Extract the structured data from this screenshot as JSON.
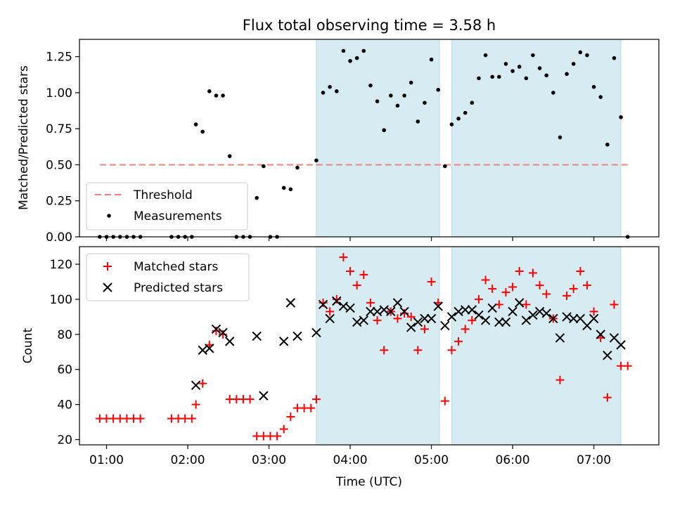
{
  "figure": {
    "title": "Flux total observing time = 3.58 h"
  },
  "chart_data": [
    {
      "type": "scatter",
      "title": "Flux total observing time = 3.58 h",
      "xlabel": "",
      "ylabel": "Matched/Predicted stars",
      "xlim": [
        "00:40",
        "07:48"
      ],
      "ylim": [
        0,
        1.37
      ],
      "yticks": [
        0.0,
        0.25,
        0.5,
        0.75,
        1.0,
        1.25
      ],
      "ytick_labels": [
        "0.00",
        "0.25",
        "0.50",
        "0.75",
        "1.00",
        "1.25"
      ],
      "grid": false,
      "legend_position": "lower-left",
      "shaded_spans": [
        {
          "start": "03:35",
          "end": "05:06",
          "color": "#add8e6"
        },
        {
          "start": "05:15",
          "end": "07:20",
          "color": "#add8e6"
        }
      ],
      "threshold": {
        "label": "Threshold",
        "value": 0.5,
        "x_start": "00:55",
        "x_end": "07:25",
        "color": "#f08080",
        "style": "dashed"
      },
      "series": [
        {
          "name": "Measurements",
          "color": "#000000",
          "marker": "dot",
          "points": [
            [
              "00:55",
              0
            ],
            [
              "01:00",
              0
            ],
            [
              "01:05",
              0
            ],
            [
              "01:10",
              0
            ],
            [
              "01:15",
              0
            ],
            [
              "01:20",
              0
            ],
            [
              "01:25",
              0
            ],
            [
              "01:48",
              0
            ],
            [
              "01:53",
              0
            ],
            [
              "01:58",
              0
            ],
            [
              "02:03",
              0
            ],
            [
              "02:06",
              0.78
            ],
            [
              "02:11",
              0.73
            ],
            [
              "02:16",
              1.01
            ],
            [
              "02:21",
              0.98
            ],
            [
              "02:26",
              0.98
            ],
            [
              "02:31",
              0.56
            ],
            [
              "02:36",
              0
            ],
            [
              "02:41",
              0
            ],
            [
              "02:46",
              0
            ],
            [
              "02:51",
              0.27
            ],
            [
              "02:56",
              0.49
            ],
            [
              "03:01",
              0
            ],
            [
              "03:06",
              0
            ],
            [
              "03:11",
              0.34
            ],
            [
              "03:16",
              0.33
            ],
            [
              "03:21",
              0.48
            ],
            [
              "03:35",
              0.53
            ],
            [
              "03:40",
              1.0
            ],
            [
              "03:45",
              1.04
            ],
            [
              "03:50",
              1.01
            ],
            [
              "03:55",
              1.29
            ],
            [
              "04:00",
              1.22
            ],
            [
              "04:05",
              1.24
            ],
            [
              "04:10",
              1.29
            ],
            [
              "04:15",
              1.05
            ],
            [
              "04:20",
              0.94
            ],
            [
              "04:25",
              0.74
            ],
            [
              "04:30",
              0.98
            ],
            [
              "04:35",
              0.91
            ],
            [
              "04:40",
              0.98
            ],
            [
              "04:45",
              1.07
            ],
            [
              "04:50",
              0.8
            ],
            [
              "04:55",
              0.93
            ],
            [
              "05:00",
              1.23
            ],
            [
              "05:05",
              1.02
            ],
            [
              "05:10",
              0.49
            ],
            [
              "05:15",
              0.78
            ],
            [
              "05:20",
              0.82
            ],
            [
              "05:25",
              0.86
            ],
            [
              "05:30",
              0.93
            ],
            [
              "05:35",
              1.1
            ],
            [
              "05:40",
              1.26
            ],
            [
              "05:45",
              1.11
            ],
            [
              "05:50",
              1.11
            ],
            [
              "05:55",
              1.2
            ],
            [
              "06:00",
              1.15
            ],
            [
              "06:05",
              1.18
            ],
            [
              "06:10",
              1.1
            ],
            [
              "06:15",
              1.26
            ],
            [
              "06:20",
              1.17
            ],
            [
              "06:25",
              1.12
            ],
            [
              "06:30",
              1.0
            ],
            [
              "06:35",
              0.69
            ],
            [
              "06:40",
              1.13
            ],
            [
              "06:45",
              1.2
            ],
            [
              "06:50",
              1.28
            ],
            [
              "06:55",
              1.26
            ],
            [
              "07:00",
              1.04
            ],
            [
              "07:05",
              0.97
            ],
            [
              "07:10",
              0.64
            ],
            [
              "07:15",
              1.24
            ],
            [
              "07:20",
              0.83
            ],
            [
              "07:25",
              0
            ]
          ]
        }
      ],
      "legend": [
        "Threshold",
        "Measurements"
      ]
    },
    {
      "type": "scatter",
      "title": "",
      "xlabel": "Time (UTC)",
      "ylabel": "Count",
      "xlim": [
        "00:40",
        "07:48"
      ],
      "ylim": [
        17,
        130
      ],
      "xticks": [
        "01:00",
        "02:00",
        "03:00",
        "04:00",
        "05:00",
        "06:00",
        "07:00"
      ],
      "yticks": [
        20,
        40,
        60,
        80,
        100,
        120
      ],
      "grid": false,
      "legend_position": "upper-left",
      "shaded_spans": [
        {
          "start": "03:35",
          "end": "05:06",
          "color": "#add8e6"
        },
        {
          "start": "05:15",
          "end": "07:20",
          "color": "#add8e6"
        }
      ],
      "series": [
        {
          "name": "Matched stars",
          "color": "#ff0000",
          "marker": "plus",
          "points": [
            [
              "00:55",
              32
            ],
            [
              "01:00",
              32
            ],
            [
              "01:05",
              32
            ],
            [
              "01:10",
              32
            ],
            [
              "01:15",
              32
            ],
            [
              "01:20",
              32
            ],
            [
              "01:25",
              32
            ],
            [
              "01:48",
              32
            ],
            [
              "01:53",
              32
            ],
            [
              "01:58",
              32
            ],
            [
              "02:03",
              32
            ],
            [
              "02:06",
              40
            ],
            [
              "02:11",
              52
            ],
            [
              "02:16",
              74
            ],
            [
              "02:21",
              82
            ],
            [
              "02:26",
              80
            ],
            [
              "02:31",
              43
            ],
            [
              "02:36",
              43
            ],
            [
              "02:41",
              43
            ],
            [
              "02:46",
              43
            ],
            [
              "02:51",
              22
            ],
            [
              "02:56",
              22
            ],
            [
              "03:01",
              22
            ],
            [
              "03:06",
              22
            ],
            [
              "03:11",
              26
            ],
            [
              "03:16",
              33
            ],
            [
              "03:21",
              38
            ],
            [
              "03:26",
              38
            ],
            [
              "03:31",
              38
            ],
            [
              "03:35",
              43
            ],
            [
              "03:40",
              98
            ],
            [
              "03:45",
              93
            ],
            [
              "03:50",
              100
            ],
            [
              "03:55",
              124
            ],
            [
              "04:00",
              116
            ],
            [
              "04:05",
              108
            ],
            [
              "04:10",
              114
            ],
            [
              "04:15",
              98
            ],
            [
              "04:20",
              88
            ],
            [
              "04:25",
              71
            ],
            [
              "04:30",
              93
            ],
            [
              "04:35",
              89
            ],
            [
              "04:40",
              92
            ],
            [
              "04:45",
              90
            ],
            [
              "04:50",
              71
            ],
            [
              "04:55",
              83
            ],
            [
              "05:00",
              110
            ],
            [
              "05:05",
              98
            ],
            [
              "05:10",
              42
            ],
            [
              "05:15",
              71
            ],
            [
              "05:20",
              76
            ],
            [
              "05:25",
              83
            ],
            [
              "05:30",
              88
            ],
            [
              "05:35",
              100
            ],
            [
              "05:40",
              111
            ],
            [
              "05:45",
              106
            ],
            [
              "05:50",
              97
            ],
            [
              "05:55",
              104
            ],
            [
              "06:00",
              107
            ],
            [
              "06:05",
              116
            ],
            [
              "06:10",
              97
            ],
            [
              "06:15",
              115
            ],
            [
              "06:20",
              108
            ],
            [
              "06:25",
              103
            ],
            [
              "06:30",
              89
            ],
            [
              "06:35",
              54
            ],
            [
              "06:40",
              102
            ],
            [
              "06:45",
              106
            ],
            [
              "06:50",
              116
            ],
            [
              "06:55",
              108
            ],
            [
              "07:00",
              93
            ],
            [
              "07:05",
              78
            ],
            [
              "07:10",
              44
            ],
            [
              "07:15",
              97
            ],
            [
              "07:20",
              62
            ],
            [
              "07:25",
              62
            ]
          ]
        },
        {
          "name": "Predicted stars",
          "color": "#000000",
          "marker": "x",
          "points": [
            [
              "02:06",
              51
            ],
            [
              "02:11",
              71
            ],
            [
              "02:16",
              72
            ],
            [
              "02:21",
              83
            ],
            [
              "02:26",
              81
            ],
            [
              "02:31",
              76
            ],
            [
              "02:51",
              79
            ],
            [
              "02:56",
              45
            ],
            [
              "03:11",
              76
            ],
            [
              "03:16",
              98
            ],
            [
              "03:21",
              79
            ],
            [
              "03:35",
              81
            ],
            [
              "03:40",
              97
            ],
            [
              "03:45",
              89
            ],
            [
              "03:50",
              99
            ],
            [
              "03:55",
              96
            ],
            [
              "04:00",
              95
            ],
            [
              "04:05",
              87
            ],
            [
              "04:10",
              88
            ],
            [
              "04:15",
              93
            ],
            [
              "04:20",
              93
            ],
            [
              "04:25",
              94
            ],
            [
              "04:30",
              93
            ],
            [
              "04:35",
              98
            ],
            [
              "04:40",
              93
            ],
            [
              "04:45",
              84
            ],
            [
              "04:50",
              87
            ],
            [
              "04:55",
              89
            ],
            [
              "05:00",
              89
            ],
            [
              "05:05",
              96
            ],
            [
              "05:10",
              85
            ],
            [
              "05:15",
              90
            ],
            [
              "05:20",
              93
            ],
            [
              "05:25",
              94
            ],
            [
              "05:30",
              94
            ],
            [
              "05:35",
              91
            ],
            [
              "05:40",
              88
            ],
            [
              "05:45",
              95
            ],
            [
              "05:50",
              87
            ],
            [
              "05:55",
              87
            ],
            [
              "06:00",
              93
            ],
            [
              "06:05",
              98
            ],
            [
              "06:10",
              88
            ],
            [
              "06:15",
              91
            ],
            [
              "06:20",
              93
            ],
            [
              "06:25",
              92
            ],
            [
              "06:30",
              89
            ],
            [
              "06:35",
              78
            ],
            [
              "06:40",
              90
            ],
            [
              "06:45",
              89
            ],
            [
              "06:50",
              89
            ],
            [
              "06:55",
              85
            ],
            [
              "07:00",
              89
            ],
            [
              "07:05",
              80
            ],
            [
              "07:10",
              68
            ],
            [
              "07:15",
              78
            ],
            [
              "07:20",
              74
            ]
          ]
        }
      ],
      "legend": [
        "Matched stars",
        "Predicted stars"
      ]
    }
  ]
}
